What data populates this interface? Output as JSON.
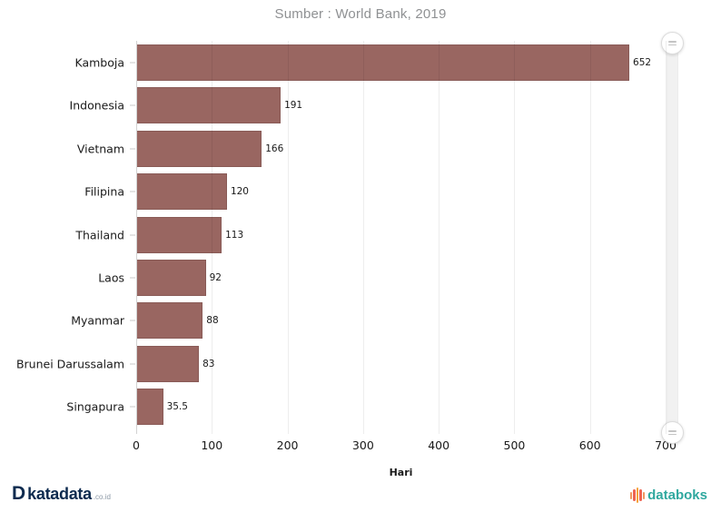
{
  "chart_data": {
    "type": "bar",
    "orientation": "horizontal",
    "title": "Sumber : World Bank, 2019",
    "categories": [
      "Kamboja",
      "Indonesia",
      "Vietnam",
      "Filipina",
      "Thailand",
      "Laos",
      "Myanmar",
      "Brunei Darussalam",
      "Singapura"
    ],
    "values": [
      652,
      191,
      166,
      120,
      113,
      92,
      88,
      83,
      35.5
    ],
    "value_labels": [
      "652",
      "191",
      "166",
      "120",
      "113",
      "92",
      "88",
      "83",
      "35.5"
    ],
    "xlabel": "Hari",
    "ylabel": "",
    "xlim": [
      0,
      700
    ],
    "x_ticks": [
      0,
      100,
      200,
      300,
      400,
      500,
      600,
      700
    ],
    "grid": true,
    "legend": "none",
    "bar_color": "#996661"
  },
  "scrollbar": {
    "orientation": "vertical",
    "grips": [
      "top",
      "bottom"
    ]
  },
  "footer": {
    "katadata": {
      "icon": "katadata-d-logo",
      "d": "D",
      "text": "katadata",
      "suffix": ".co.id"
    },
    "databoks": {
      "icon": "databoks-bars-logo",
      "text": "databoks"
    }
  },
  "colors": {
    "bar": "#996661",
    "title_text": "#8f9193",
    "katadata_navy": "#0e2b4f",
    "databoks_teal": "#2fa89f",
    "grid": "#e9e9e9"
  }
}
